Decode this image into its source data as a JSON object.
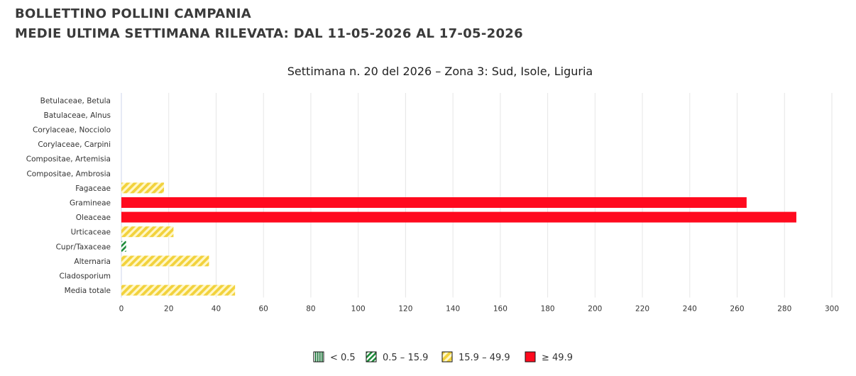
{
  "header": {
    "title": "BOLLETTINO POLLINI CAMPANIA",
    "subtitle": "MEDIE ULTIMA SETTIMANA RILEVATA: DAL 11-05-2026 AL 17-05-2026"
  },
  "chart_data": {
    "type": "bar",
    "orientation": "horizontal",
    "title": "Settimana n. 20 del 2026 – Zona 3: Sud, Isole, Liguria",
    "categories": [
      "Betulaceae, Betula",
      "Batulaceae, Alnus",
      "Corylaceae, Nocciolo",
      "Corylaceae, Carpini",
      "Compositae, Artemisia",
      "Compositae, Ambrosia",
      "Fagaceae",
      "Gramineae",
      "Oleaceae",
      "Urticaceae",
      "Cupr/Taxaceae",
      "Alternaria",
      "Cladosporium",
      "Media totale"
    ],
    "values": [
      0,
      0,
      0,
      0,
      0,
      0,
      18,
      264,
      285,
      22,
      2,
      37,
      0,
      48
    ],
    "xlim": [
      0,
      300
    ],
    "xticks": [
      0,
      20,
      40,
      60,
      80,
      100,
      120,
      140,
      160,
      180,
      200,
      220,
      240,
      260,
      280,
      300
    ],
    "grid": true,
    "legend_position": "bottom",
    "legend": [
      {
        "label": "< 0.5",
        "pattern": "vertical",
        "color": "#0b6b2a"
      },
      {
        "label": "0.5 – 15.9",
        "pattern": "diagonal",
        "color": "#1e8c3a"
      },
      {
        "label": "15.9 – 49.9",
        "pattern": "diagonal",
        "color": "#f2d23c"
      },
      {
        "label": "≥ 49.9",
        "pattern": "solid",
        "color": "#ff0a1e"
      }
    ],
    "thresholds": [
      0.5,
      15.9,
      49.9
    ]
  }
}
